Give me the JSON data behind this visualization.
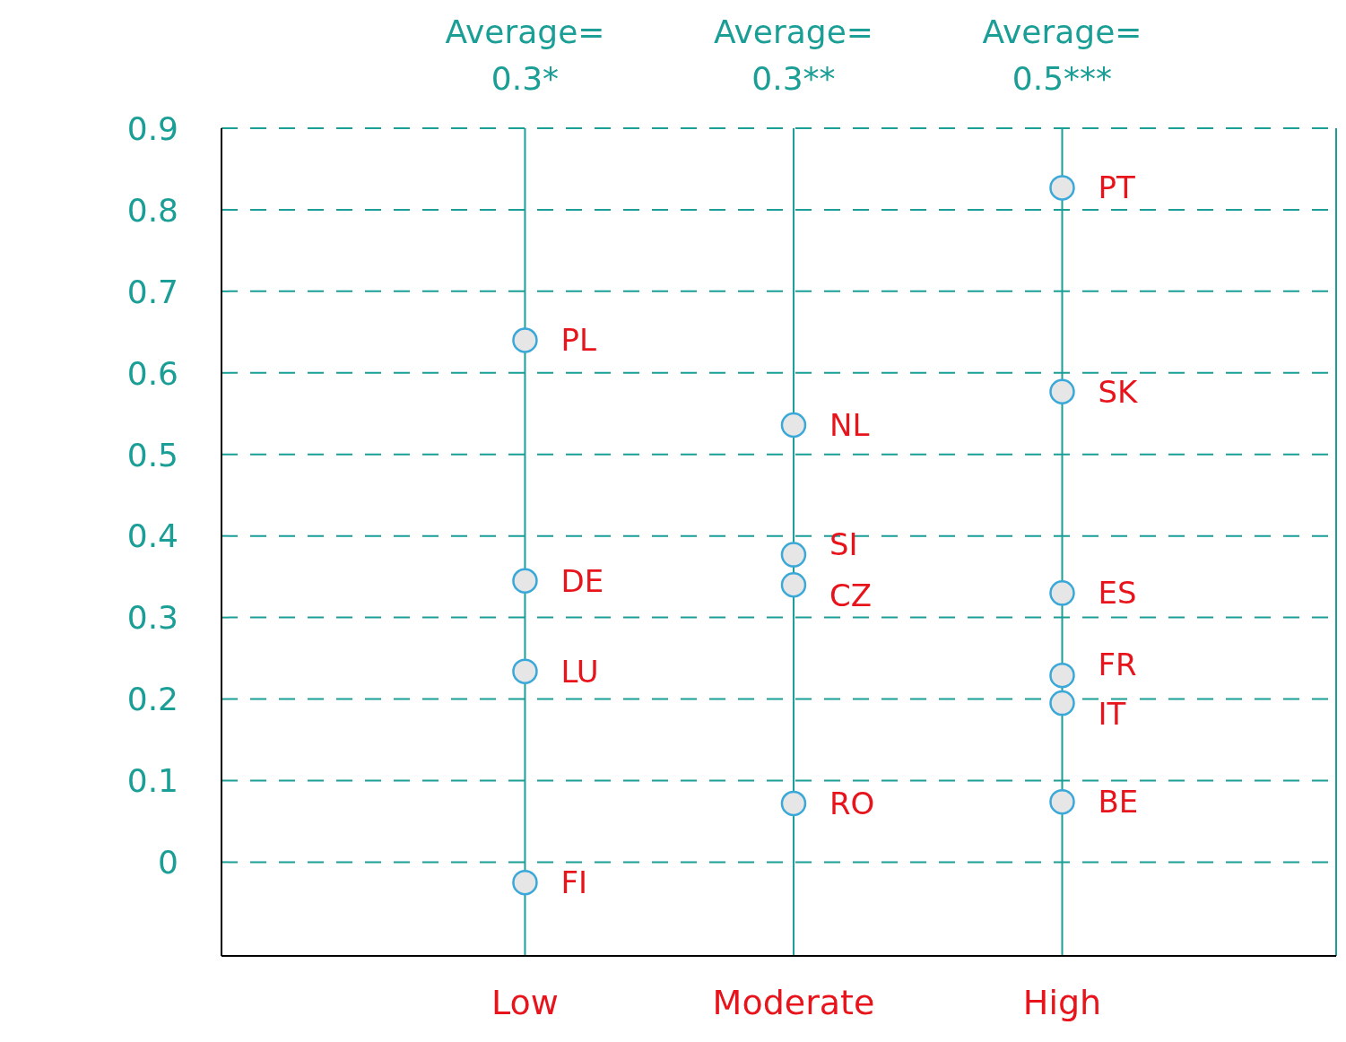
{
  "chart_data": {
    "type": "scatter",
    "categories": [
      "Low",
      "Moderate",
      "High"
    ],
    "series": [
      {
        "color": "#3aa8d8",
        "x": [
          "Low",
          "Low",
          "Low",
          "Low",
          "Moderate",
          "Moderate",
          "Moderate",
          "Moderate",
          "High",
          "High",
          "High",
          "High",
          "High",
          "High"
        ],
        "values": [
          0.64,
          0.345,
          0.234,
          -0.025,
          0.536,
          0.377,
          0.34,
          0.072,
          0.827,
          0.577,
          0.33,
          0.229,
          0.195,
          0.074
        ]
      }
    ],
    "ylim": [
      -0.115,
      0.9
    ],
    "yticks": [
      0,
      0.1,
      0.2,
      0.3,
      0.4,
      0.5,
      0.6,
      0.7,
      0.8,
      0.9
    ],
    "grid": true,
    "marker": "circle",
    "legend": false,
    "annotations": [
      "Average= 0.3*",
      "Average= 0.3**",
      "Average= 0.5***",
      {
        "text": "PL",
        "x": "Low",
        "y": 0.64
      },
      {
        "text": "DE",
        "x": "Low",
        "y": 0.345
      },
      {
        "text": "LU",
        "x": "Low",
        "y": 0.234
      },
      {
        "text": "FI",
        "x": "Low",
        "y": -0.025
      },
      {
        "text": "NL",
        "x": "Moderate",
        "y": 0.536
      },
      {
        "text": "SI",
        "x": "Moderate",
        "y": 0.377
      },
      {
        "text": "CZ",
        "x": "Moderate",
        "y": 0.34
      },
      {
        "text": "RO",
        "x": "Moderate",
        "y": 0.072
      },
      {
        "text": "PT",
        "x": "High",
        "y": 0.827
      },
      {
        "text": "SK",
        "x": "High",
        "y": 0.577
      },
      {
        "text": "ES",
        "x": "High",
        "y": 0.33
      },
      {
        "text": "FR",
        "x": "High",
        "y": 0.229
      },
      {
        "text": "IT",
        "x": "High",
        "y": 0.195
      },
      {
        "text": "BE",
        "x": "High",
        "y": 0.074
      }
    ]
  }
}
